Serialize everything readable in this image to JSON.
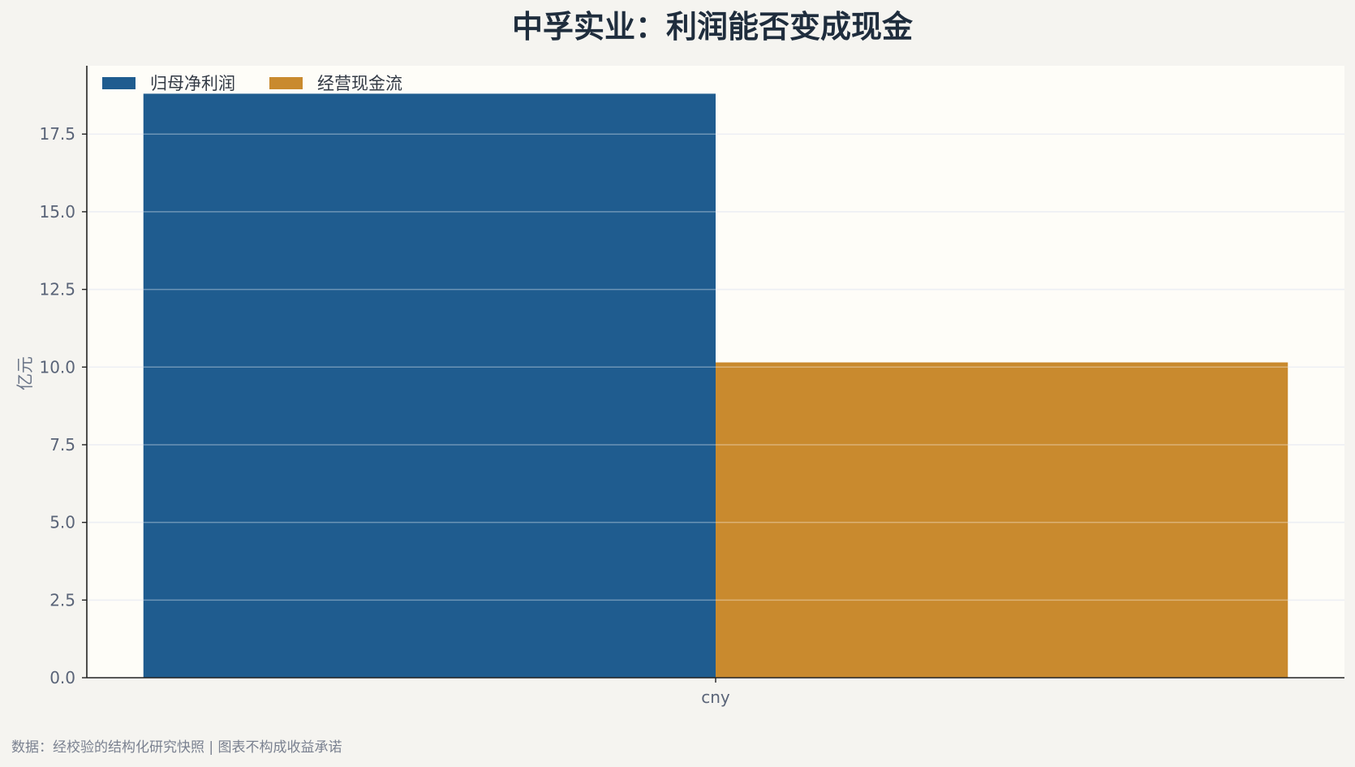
{
  "colors": {
    "page_bg": "#f5f4f0",
    "plot_bg": "#fefdf8",
    "grid": "#e3e6ee",
    "axis": "#222222",
    "title": "#1f2d3d"
  },
  "chart_data": {
    "type": "bar",
    "title": "中孚实业：利润能否变成现金",
    "xlabel": "",
    "ylabel": "亿元",
    "categories": [
      "cny"
    ],
    "series": [
      {
        "name": "归母净利润",
        "values": [
          18.8
        ],
        "color": "#1f5c8f"
      },
      {
        "name": "经营现金流",
        "values": [
          10.15
        ],
        "color": "#c98a2e"
      }
    ],
    "ylim": [
      0,
      19.7
    ],
    "yticks": [
      "0.0",
      "2.5",
      "5.0",
      "7.5",
      "10.0",
      "12.5",
      "15.0",
      "17.5"
    ],
    "grid": true,
    "legend_position": "top-left"
  },
  "footer": "数据：经校验的结构化研究快照 | 图表不构成收益承诺"
}
